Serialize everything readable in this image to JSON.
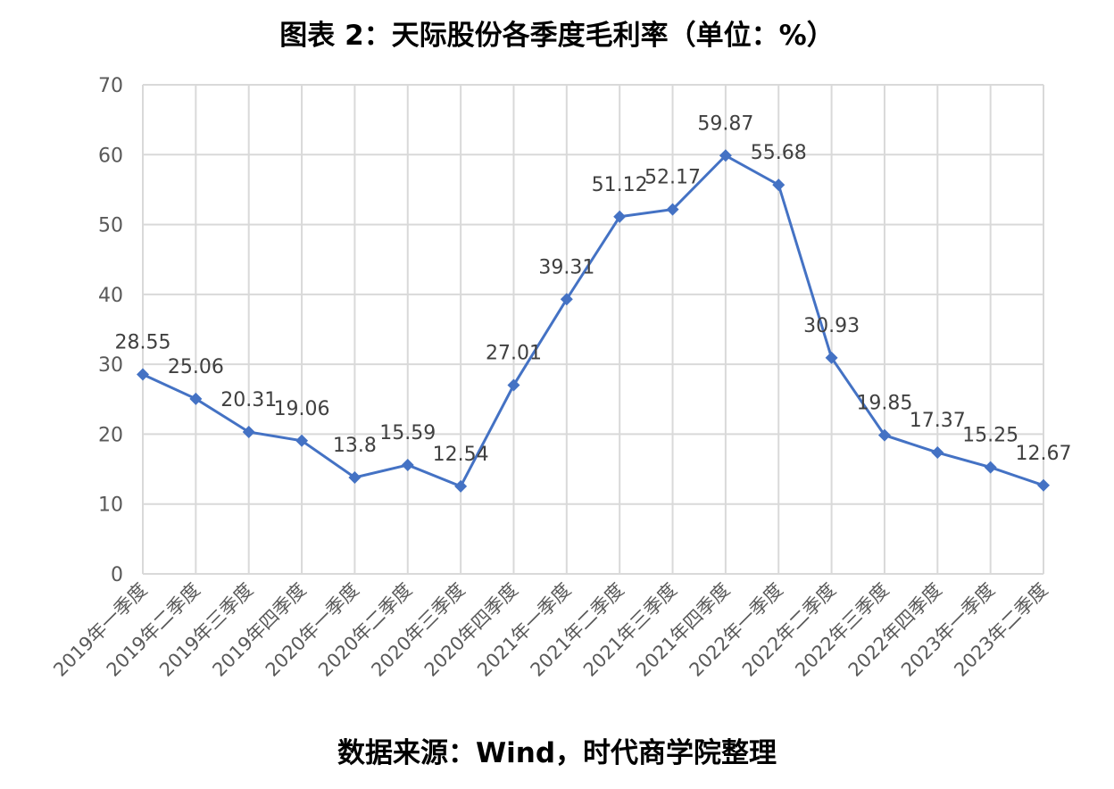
{
  "title": "图表 2：天际股份各季度毛利率（单位：%）",
  "source": "数据来源：Wind，时代商学院整理",
  "chart_data": {
    "type": "line",
    "categories": [
      "2019年一季度",
      "2019年二季度",
      "2019年三季度",
      "2019年四季度",
      "2020年一季度",
      "2020年二季度",
      "2020年三季度",
      "2020年四季度",
      "2021年一季度",
      "2021年二季度",
      "2021年三季度",
      "2021年四季度",
      "2022年一季度",
      "2022年二季度",
      "2022年三季度",
      "2022年四季度",
      "2023年一季度",
      "2023年二季度"
    ],
    "values": [
      28.55,
      25.06,
      20.31,
      19.06,
      13.8,
      15.59,
      12.54,
      27.01,
      39.31,
      51.12,
      52.17,
      59.87,
      55.68,
      30.93,
      19.85,
      17.37,
      15.25,
      12.67
    ],
    "data_labels": [
      "28.55",
      "25.06",
      "20.31",
      "19.06",
      "13.8",
      "15.59",
      "12.54",
      "27.01",
      "39.31",
      "51.12",
      "52.17",
      "59.87",
      "55.68",
      "30.93",
      "19.85",
      "17.37",
      "15.25",
      "12.67"
    ],
    "y_ticks": [
      "0",
      "10",
      "20",
      "30",
      "40",
      "50",
      "60",
      "70"
    ],
    "ylim": [
      0,
      70
    ],
    "grid": true,
    "legend": "none",
    "marker": "diamond",
    "line_color": "#4472C4",
    "grid_color": "#D9D9D9"
  }
}
